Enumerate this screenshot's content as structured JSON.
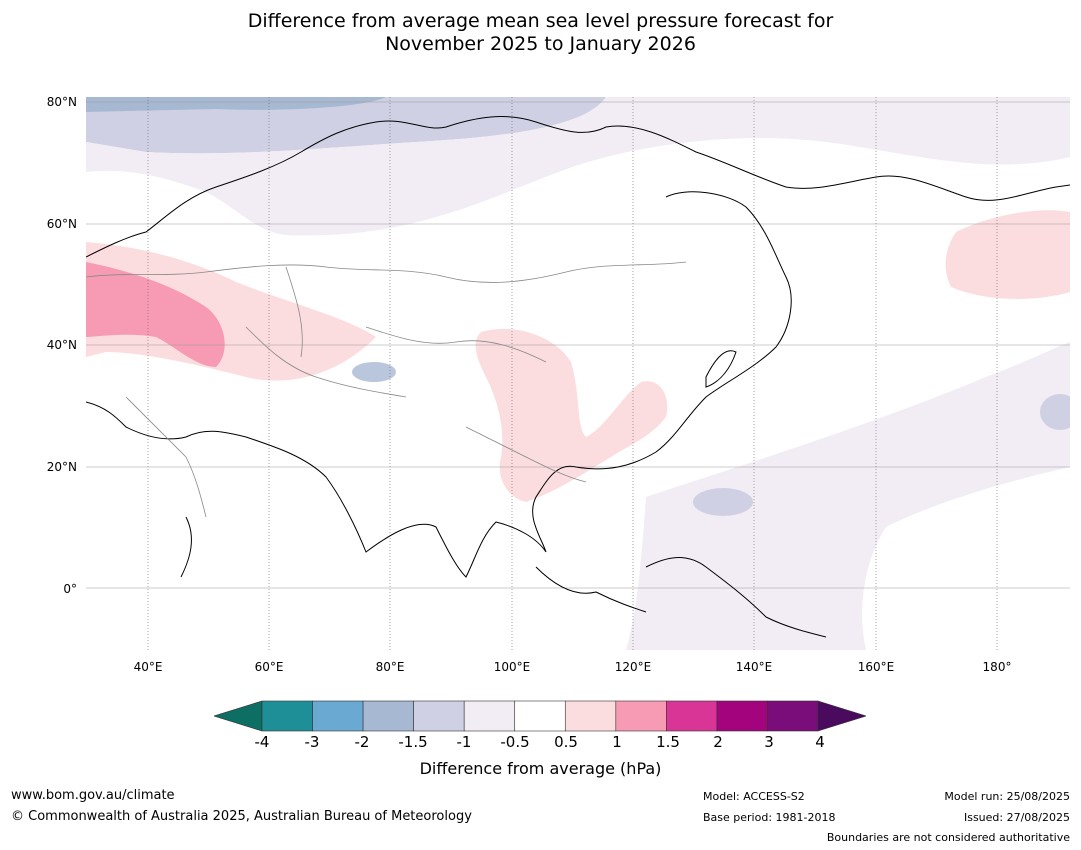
{
  "title": {
    "line1": "Difference from average mean sea level pressure forecast for",
    "line2": "November 2025 to January 2026"
  },
  "map": {
    "lat_labels": [
      "80°N",
      "60°N",
      "40°N",
      "20°N",
      "0°"
    ],
    "lon_labels": [
      "40°E",
      "60°E",
      "80°E",
      "100°E",
      "120°E",
      "140°E",
      "160°E",
      "180°"
    ],
    "graticule": "lat/lon gridlines every 20°"
  },
  "legend": {
    "ticks": [
      "-4",
      "-3",
      "-2",
      "-1.5",
      "-1",
      "-0.5",
      "0.5",
      "1",
      "1.5",
      "2",
      "3",
      "4"
    ],
    "colors": [
      "#0d6e63",
      "#1e8f97",
      "#6aa9d1",
      "#a7b8d3",
      "#cfd0e3",
      "#f2ecf4",
      "#ffffff",
      "#fcdddf",
      "#f79bb5",
      "#d93596",
      "#a3037c",
      "#7a0d7a",
      "#4a0a5e"
    ],
    "label": "Difference from average (hPa)"
  },
  "footer": {
    "website": "www.bom.gov.au/climate",
    "copyright": "© Commonwealth of Australia 2025, Australian Bureau of Meteorology",
    "model": "Model: ACCESS-S2",
    "base_period": "Base period: 1981-2018",
    "model_run": "Model run: 25/08/2025",
    "issued": "Issued: 27/08/2025",
    "disclaimer": "Boundaries are not considered authoritative"
  }
}
